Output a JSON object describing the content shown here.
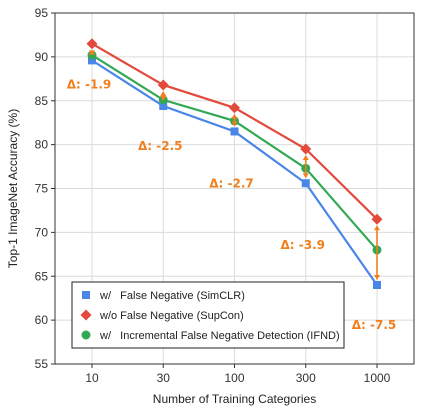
{
  "chart_data": {
    "type": "line",
    "xlabel": "Number of Training Categories",
    "ylabel": "Top-1 ImageNet Accuracy (%)",
    "categories": [
      "10",
      "30",
      "100",
      "300",
      "1000"
    ],
    "ylim": [
      55,
      95
    ],
    "yticks": [
      "55",
      "60",
      "65",
      "70",
      "75",
      "80",
      "85",
      "90",
      "95"
    ],
    "grid": true,
    "legend_position": "bottom-left",
    "series": [
      {
        "name": "w/   False Negative (SimCLR)",
        "marker": "square",
        "color": "#4a86e8",
        "values": [
          89.6,
          84.4,
          81.5,
          75.6,
          64.0
        ]
      },
      {
        "name": "w/o False Negative (SupCon)",
        "marker": "diamond",
        "color": "#e34a3c",
        "values": [
          91.5,
          86.8,
          84.2,
          79.5,
          71.5
        ]
      },
      {
        "name": "w/   Incremental False Negative Detection (IFND)",
        "marker": "circle",
        "color": "#33a853",
        "values": [
          90.2,
          85.1,
          82.7,
          77.3,
          68.0
        ]
      }
    ],
    "annotations": [
      {
        "category": "10",
        "text": "Δ: -1.9"
      },
      {
        "category": "30",
        "text": "Δ: -2.5"
      },
      {
        "category": "100",
        "text": "Δ: -2.7"
      },
      {
        "category": "300",
        "text": "Δ: -3.9"
      },
      {
        "category": "1000",
        "text": "Δ: -7.5"
      }
    ],
    "annotation_color": "#f07f1e"
  }
}
